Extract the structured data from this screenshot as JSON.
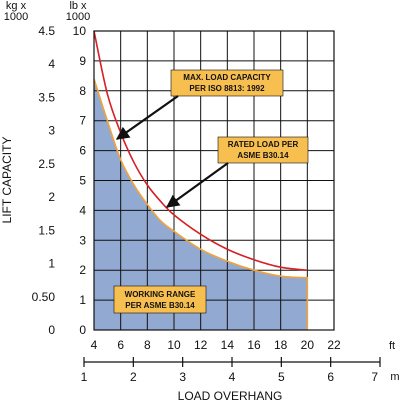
{
  "chart_data": {
    "type": "area",
    "x_primary": {
      "unit_label": "ft",
      "range": [
        4,
        22
      ],
      "ticks": [
        4,
        6,
        8,
        10,
        12,
        14,
        16,
        18,
        20,
        22
      ]
    },
    "x_secondary": {
      "unit_label": "m",
      "range": [
        1,
        7
      ],
      "ticks": [
        1,
        2,
        3,
        4,
        5,
        6,
        7
      ]
    },
    "xlabel": "LOAD OVERHANG",
    "y_primary": {
      "unit_label": [
        "lb x",
        "1000"
      ],
      "range": [
        0,
        10
      ],
      "ticks": [
        0,
        1,
        2,
        3,
        4,
        5,
        6,
        7,
        8,
        9,
        10
      ]
    },
    "y_secondary": {
      "unit_label": [
        "kg x",
        "1000"
      ],
      "range": [
        0,
        4.5
      ],
      "ticks": [
        "0",
        "0.50",
        "1",
        "1.5",
        "2",
        "2.5",
        "3",
        "3.5",
        "4",
        "4.5"
      ]
    },
    "ylabel": "LIFT CAPACITY",
    "grid": true,
    "series": [
      {
        "name": "MAX. LOAD CAPACITY PER ISO 8813: 1992",
        "color": "#d61f26",
        "x": [
          4,
          5,
          6,
          7,
          8,
          9,
          10,
          12,
          14,
          16,
          18,
          20
        ],
        "values": [
          10.0,
          7.9,
          6.6,
          5.6,
          4.85,
          4.3,
          3.85,
          3.2,
          2.7,
          2.35,
          2.1,
          2.0
        ]
      },
      {
        "name": "RATED LOAD PER ASME B30.14",
        "color": "#f2a33a",
        "x": [
          4,
          5,
          6,
          7,
          8,
          9,
          10,
          12,
          14,
          16,
          18,
          20
        ],
        "values": [
          8.4,
          7.0,
          5.7,
          4.85,
          4.2,
          3.65,
          3.3,
          2.7,
          2.3,
          2.0,
          1.8,
          1.75
        ]
      }
    ],
    "area": {
      "name": "WORKING RANGE PER ASME B30.14",
      "color": "#92a9d2",
      "under_series": 1
    },
    "annotations": [
      {
        "lines": [
          "MAX. LOAD CAPACITY",
          "PER ISO 8813: 1992"
        ],
        "points_to": [
          5.4,
          6.3
        ]
      },
      {
        "lines": [
          "RATED LOAD PER",
          "ASME B30.14"
        ],
        "points_to": [
          8.7,
          4.1
        ]
      },
      {
        "lines": [
          "WORKING RANGE",
          "PER ASME B30.14"
        ]
      }
    ]
  }
}
